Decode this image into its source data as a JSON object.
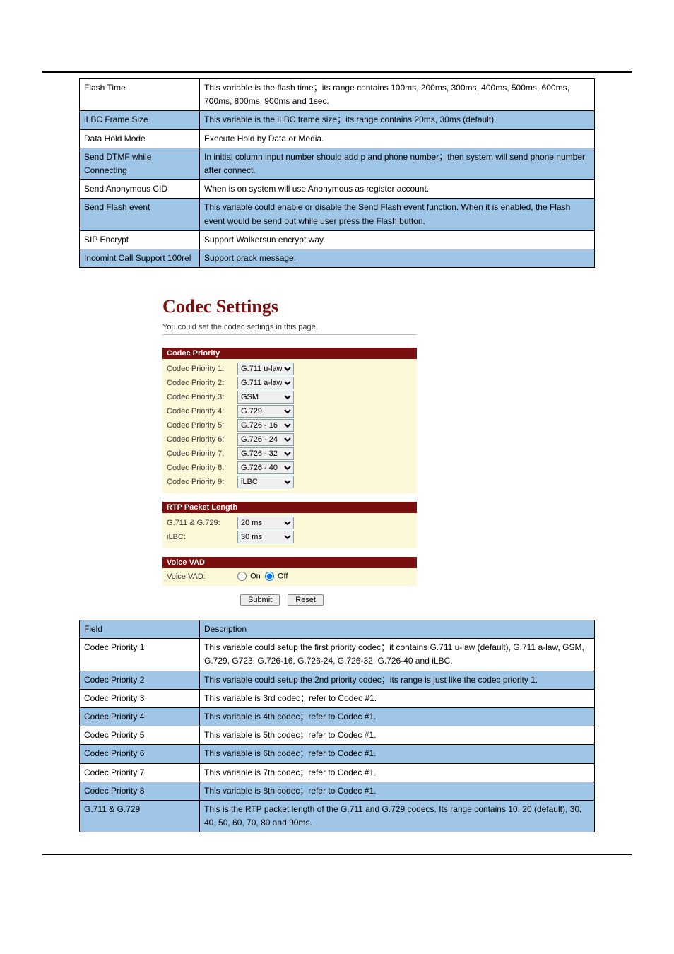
{
  "table1": {
    "rows": [
      {
        "label": "Flash Time",
        "desc": "This variable is the flash time；its range contains 100ms, 200ms, 300ms, 400ms, 500ms, 600ms, 700ms, 800ms, 900ms and 1sec.",
        "bg": "white"
      },
      {
        "label": "iLBC Frame Size",
        "desc": "This variable is the iLBC frame size；its range contains 20ms, 30ms (default).",
        "bg": "blue"
      },
      {
        "label": "Data Hold Mode",
        "desc": "Execute Hold by Data or Media.",
        "bg": "white"
      },
      {
        "label": "Send DTMF while Connecting",
        "desc": "In initial column input number should add p and phone number；then system will send phone number after connect.",
        "bg": "blue"
      },
      {
        "label": "Send Anonymous CID",
        "desc": "When is on system will use Anonymous as register account.",
        "bg": "white"
      },
      {
        "label": "Send Flash event",
        "desc": "This variable could enable or disable the Send Flash event function. When it is enabled, the Flash event would be send out while user press the Flash button.",
        "bg": "blue"
      },
      {
        "label": "SIP Encrypt",
        "desc": "Support Walkersun encrypt way.",
        "bg": "white"
      },
      {
        "label": "Incomint Call Support 100rel",
        "desc": "Support prack message.",
        "bg": "blue"
      }
    ]
  },
  "codec": {
    "title": "Codec Settings",
    "subtitle": "You could set the codec settings in this page.",
    "priority": {
      "header": "Codec Priority",
      "rows": [
        {
          "label": "Codec Priority 1:",
          "value": "G.711 u-law"
        },
        {
          "label": "Codec Priority 2:",
          "value": "G.711 a-law"
        },
        {
          "label": "Codec Priority 3:",
          "value": "GSM"
        },
        {
          "label": "Codec Priority 4:",
          "value": "G.729"
        },
        {
          "label": "Codec Priority 5:",
          "value": "G.726 - 16"
        },
        {
          "label": "Codec Priority 6:",
          "value": "G.726 - 24"
        },
        {
          "label": "Codec Priority 7:",
          "value": "G.726 - 32"
        },
        {
          "label": "Codec Priority 8:",
          "value": "G.726 - 40"
        },
        {
          "label": "Codec Priority 9:",
          "value": "iLBC"
        }
      ]
    },
    "rtp": {
      "header": "RTP Packet Length",
      "rows": [
        {
          "label": "G.711 & G.729:",
          "value": "20 ms"
        },
        {
          "label": "iLBC:",
          "value": "30 ms"
        }
      ]
    },
    "vad": {
      "header": "Voice VAD",
      "label": "Voice VAD:",
      "on": "On",
      "off": "Off"
    },
    "submit": "Submit",
    "reset": "Reset"
  },
  "table2": {
    "header": {
      "col1": "Field",
      "col2": "Description"
    },
    "rows": [
      {
        "label": "Codec Priority 1",
        "desc": "This variable could setup the first priority codec；it contains G.711 u-law (default), G.711 a-law, GSM, G.729, G723, G.726-16, G.726-24, G.726-32, G.726-40 and iLBC."
      },
      {
        "label": "Codec Priority 2",
        "desc": "This variable could setup the 2nd priority codec；its range is just like the codec priority 1."
      },
      {
        "label": "Codec Priority 3",
        "desc": "This variable is 3rd codec；refer to Codec #1."
      },
      {
        "label": "Codec Priority 4",
        "desc": "This variable is 4th codec；refer to Codec #1."
      },
      {
        "label": "Codec Priority 5",
        "desc": "This variable is 5th codec；refer to Codec #1."
      },
      {
        "label": "Codec Priority 6",
        "desc": "This variable is 6th codec；refer to Codec #1."
      },
      {
        "label": "Codec Priority 7",
        "desc": "This variable is 7th codec；refer to Codec #1."
      },
      {
        "label": "Codec Priority 8",
        "desc": "This variable is 8th codec；refer to Codec #1."
      },
      {
        "label": "G.711 & G.729",
        "desc": "This is the RTP packet length of the G.711 and G.729 codecs. Its range contains 10, 20 (default), 30, 40, 50, 60, 70, 80 and 90ms."
      }
    ]
  }
}
